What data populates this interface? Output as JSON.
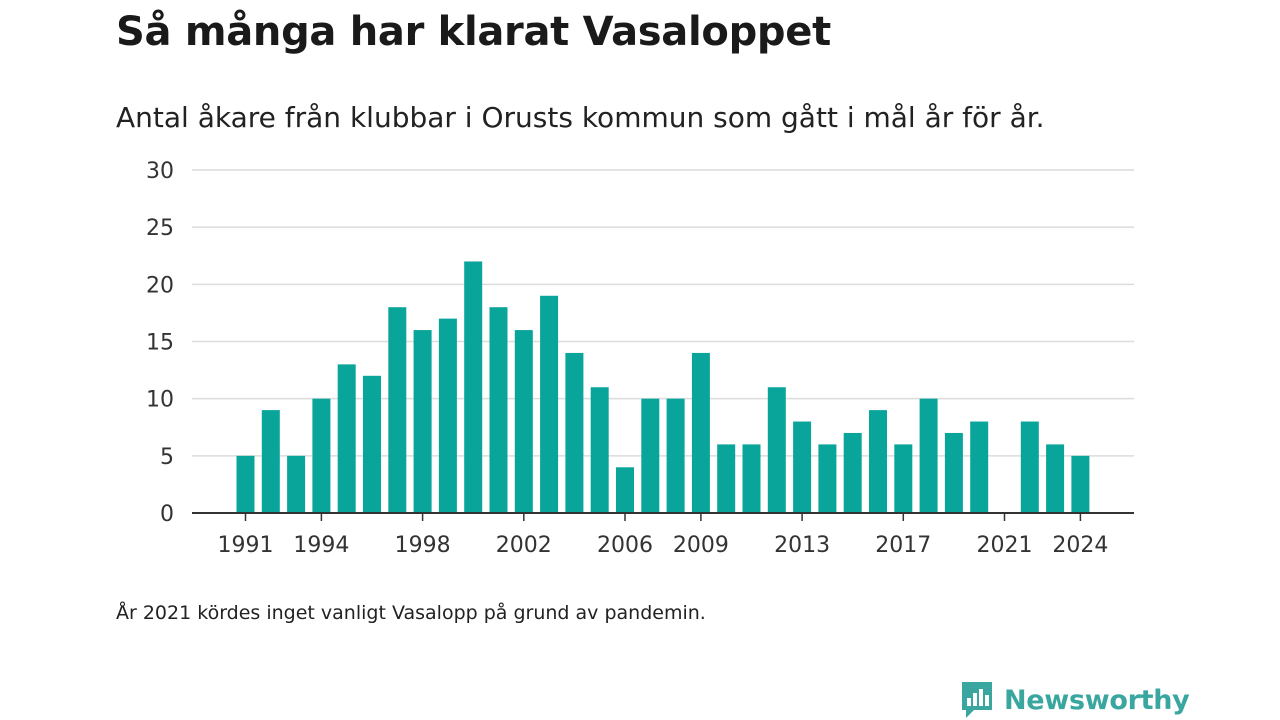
{
  "header": {
    "title": "Så många har klarat Vasaloppet",
    "subtitle": "Antal åkare från klubbar i Orusts kommun som gått i mål år för år."
  },
  "footnote": "År 2021 kördes inget vanligt Vasalopp på grund av pandemin.",
  "brand": {
    "name": "Newsworthy",
    "icon": "newsworthy-logo-icon",
    "color": "#3aa6a0"
  },
  "chart_data": {
    "type": "bar",
    "categories": [
      "1991",
      "1992",
      "1993",
      "1994",
      "1995",
      "1996",
      "1997",
      "1998",
      "1999",
      "2000",
      "2001",
      "2002",
      "2003",
      "2004",
      "2005",
      "2006",
      "2007",
      "2008",
      "2009",
      "2010",
      "2011",
      "2012",
      "2013",
      "2014",
      "2015",
      "2016",
      "2017",
      "2018",
      "2019",
      "2020",
      "2021",
      "2022",
      "2023",
      "2024"
    ],
    "values": [
      5,
      9,
      5,
      10,
      13,
      12,
      18,
      16,
      17,
      22,
      18,
      16,
      19,
      14,
      11,
      4,
      10,
      10,
      14,
      6,
      6,
      11,
      8,
      6,
      7,
      9,
      6,
      10,
      7,
      8,
      0,
      8,
      6,
      5
    ],
    "x_tick_labels": [
      "1991",
      "1994",
      "1998",
      "2002",
      "2006",
      "2009",
      "2013",
      "2017",
      "2021",
      "2024"
    ],
    "y_ticks": [
      0,
      5,
      10,
      15,
      20,
      25,
      30
    ],
    "ylim": [
      0,
      30
    ],
    "grid": true,
    "bar_color": "#0aa59a"
  }
}
